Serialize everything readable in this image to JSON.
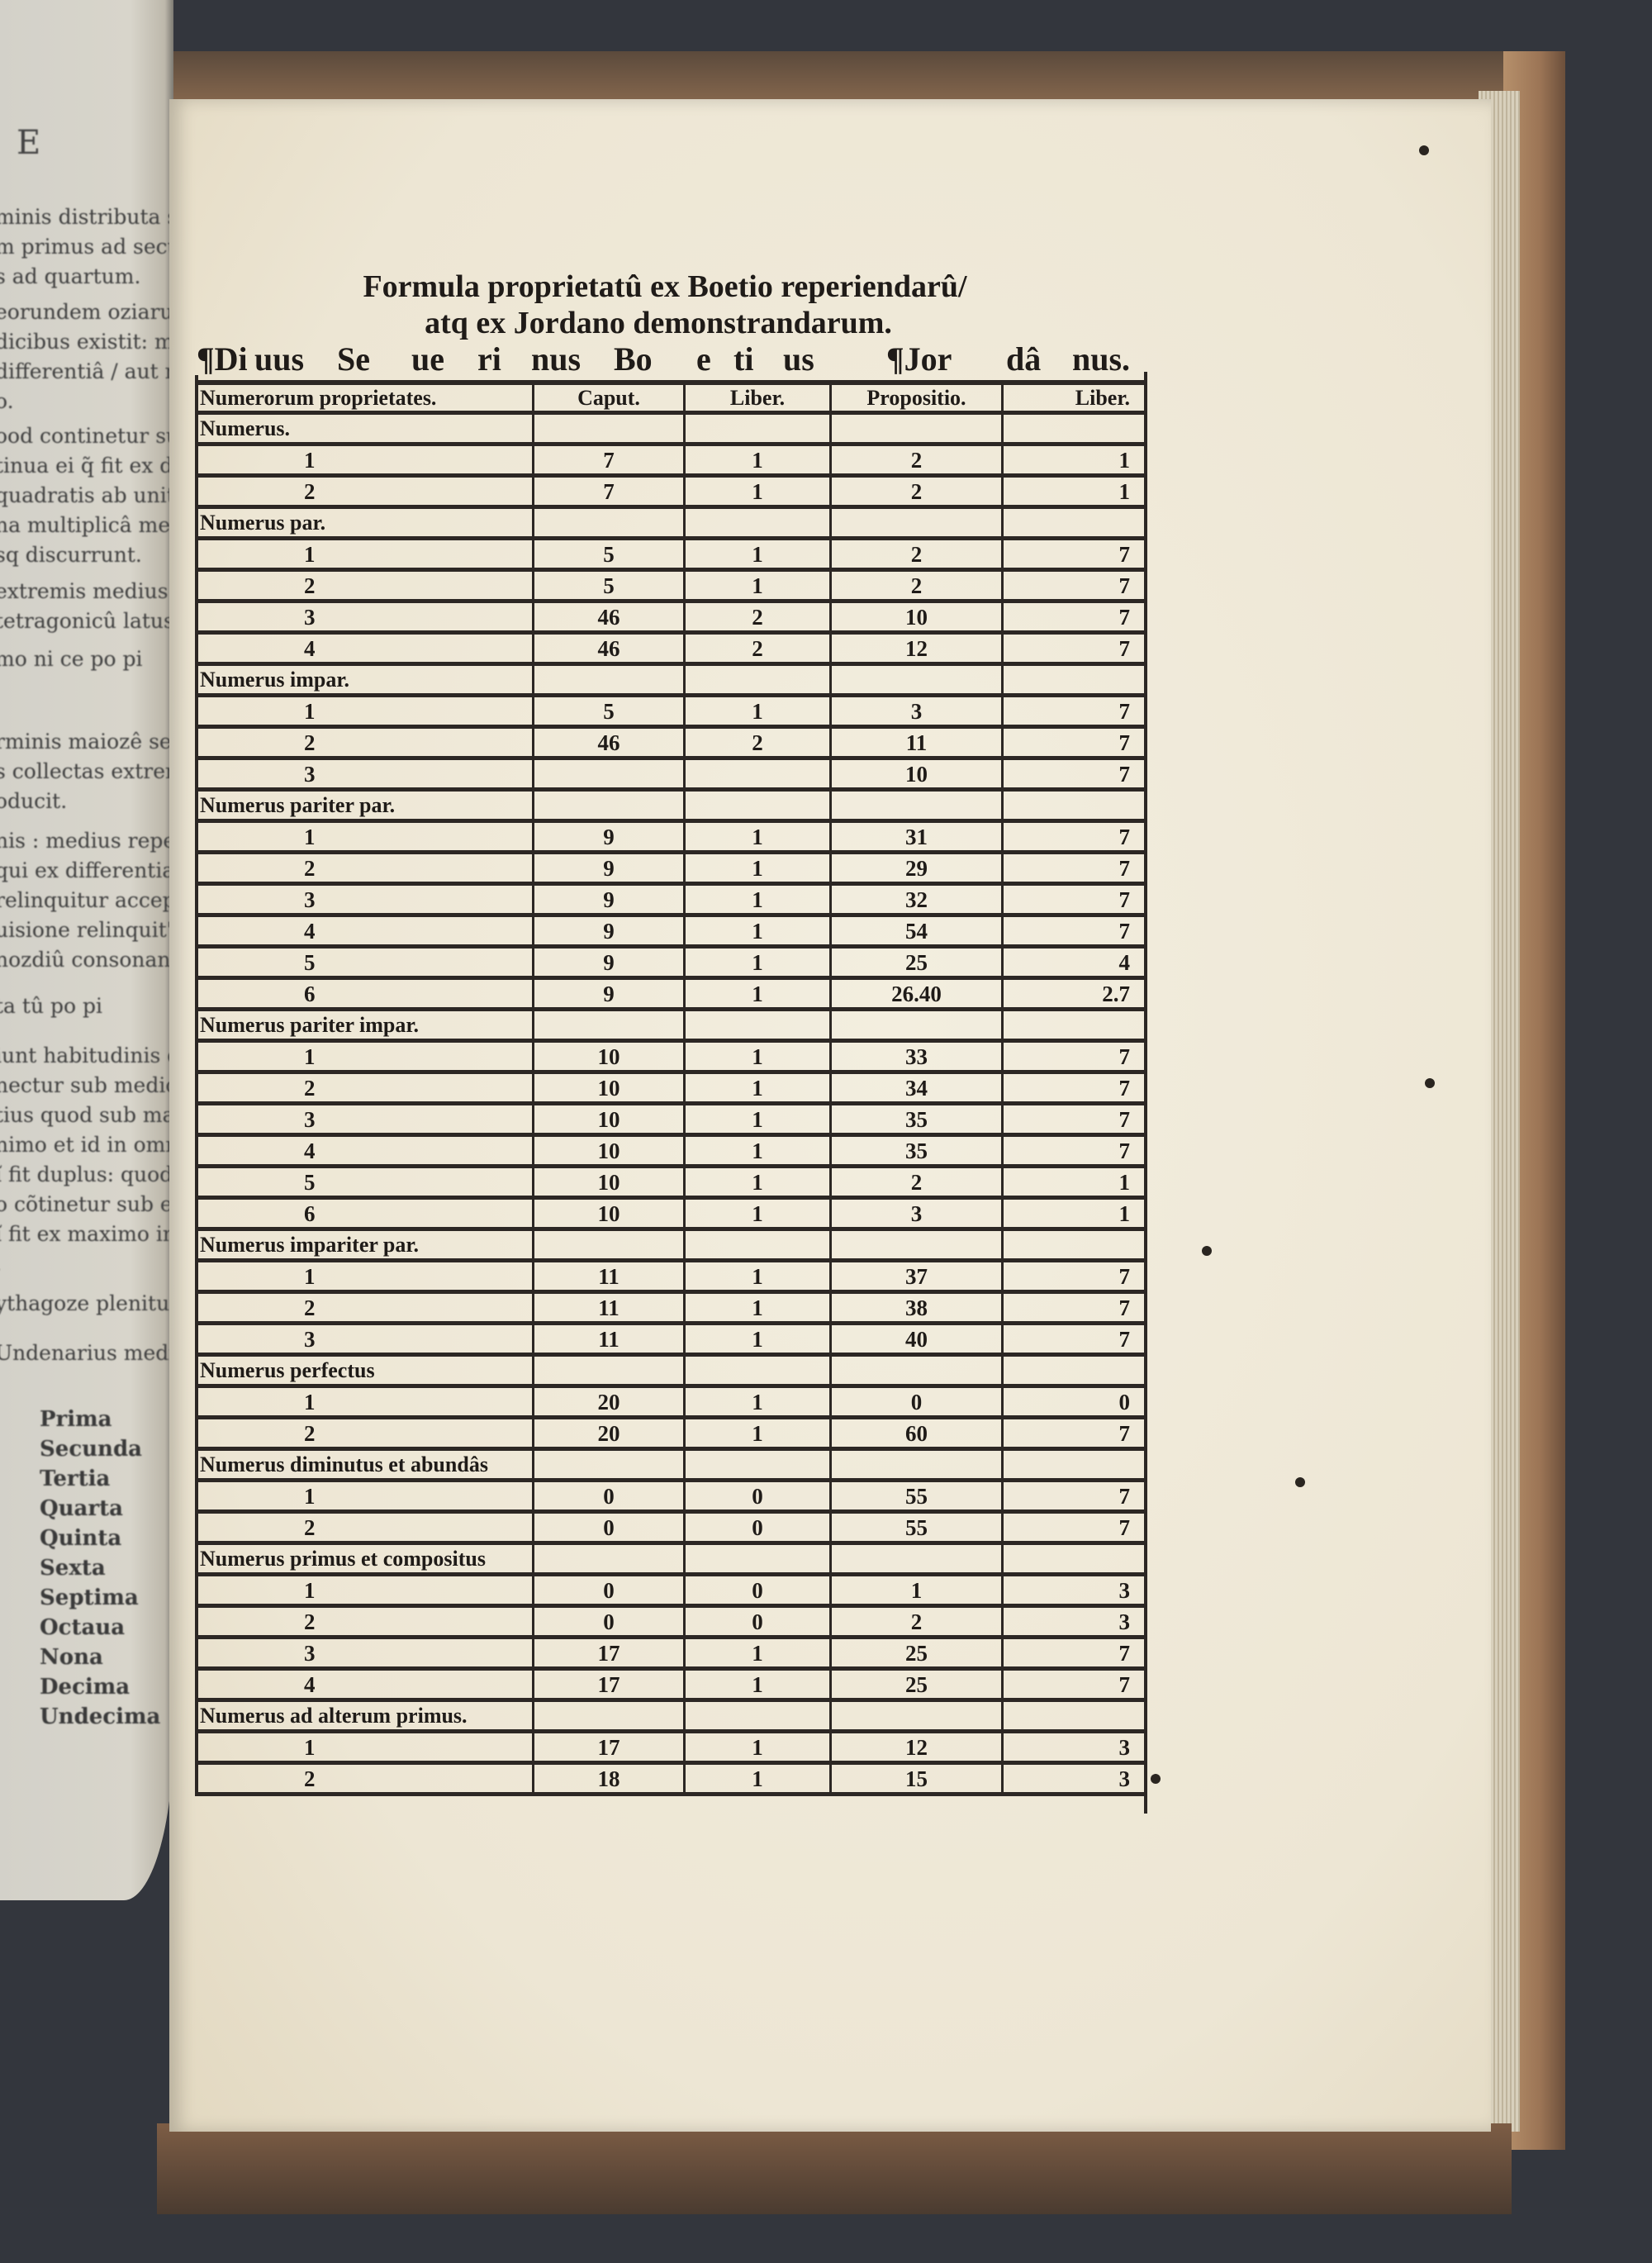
{
  "left_page": {
    "page_mark": "E",
    "paragraphs": [
      [
        "minis distributa semper permu",
        "m primus ad secundu: sic tertiu",
        "s ad quartum."
      ],
      [
        "eorundem oziarum similis ch p",
        "dicibus existit: maior numerus",
        "differentiâ / aut multiplicê num",
        "o."
      ],
      [
        "ood continetur sub extremis",
        "tinua ei q̃ fit ex duab' in se",
        "quadratis ab unitate t alterius",
        "na multiplicâ medietate in m",
        "sq discurrunt."
      ],
      [
        "extremis medius proportiona",
        "tetragonicû latus accipiat"
      ],
      [
        "mo    ni    ce    po    pi"
      ],
      [
        "rminis maiozê seruat propo",
        "s collectas extremitates du",
        "oducit."
      ],
      [
        "nis : medius reperitur ter",
        "qui ex differentia extremi",
        "relinquitur acceptatur ap",
        "uisione relinquit' latitudo",
        "nozdiû consonantiarû cois"
      ],
      [
        "ta    tû    po    pi"
      ],
      [
        "iunt habitudinis duplicati",
        "nectur sub medio t mini",
        "tius quod sub maximo e t",
        "nimo et id in omni medi",
        "ĩ fit duplus: quod cõtine",
        "o cõtinetur sub extremis",
        "ĩ fit ex maximo in medi",
        "."
      ],
      [
        "ythagoze plenitudinê in"
      ],
      [
        "Undenarius medieta"
      ]
    ],
    "list": [
      "Prima",
      "Secunda",
      "Tertia",
      "Quarta",
      "Quinta",
      "Sexta",
      "Septima",
      "Octaua",
      "Nona",
      "Decima",
      "Undecima"
    ]
  },
  "right_page": {
    "title_line1": "Formula proprietatû ex Boetio reperiendarû/",
    "title_line2": "atq ex Jordano demonstrandarum.",
    "authors": [
      "¶Di",
      "uus",
      "Se",
      "ue",
      "ri",
      "nus",
      "Bo",
      "e",
      "ti",
      "us",
      "¶Jor",
      "dâ",
      "nus."
    ],
    "columns": [
      "Numerorum proprietates.",
      "Caput.",
      "Liber.",
      "Propositio.",
      "Liber."
    ],
    "groups": [
      {
        "name": "Numerus.",
        "rows": [
          [
            "1",
            "7",
            "1",
            "2",
            "1"
          ],
          [
            "2",
            "7",
            "1",
            "2",
            "1"
          ]
        ]
      },
      {
        "name": "Numerus par.",
        "rows": [
          [
            "1",
            "5",
            "1",
            "2",
            "7"
          ],
          [
            "2",
            "5",
            "1",
            "2",
            "7"
          ],
          [
            "3",
            "46",
            "2",
            "10",
            "7"
          ],
          [
            "4",
            "46",
            "2",
            "12",
            "7"
          ]
        ]
      },
      {
        "name": "Numerus impar.",
        "rows": [
          [
            "1",
            "5",
            "1",
            "3",
            "7"
          ],
          [
            "2",
            "46",
            "2",
            "11",
            "7"
          ],
          [
            "3",
            "",
            "",
            "10",
            "7"
          ]
        ]
      },
      {
        "name": "Numerus pariter par.",
        "rows": [
          [
            "1",
            "9",
            "1",
            "31",
            "7"
          ],
          [
            "2",
            "9",
            "1",
            "29",
            "7"
          ],
          [
            "3",
            "9",
            "1",
            "32",
            "7"
          ],
          [
            "4",
            "9",
            "1",
            "54",
            "7"
          ],
          [
            "5",
            "9",
            "1",
            "25",
            "4"
          ],
          [
            "6",
            "9",
            "1",
            "26.40",
            "2.7"
          ]
        ]
      },
      {
        "name": "Numerus pariter impar.",
        "rows": [
          [
            "1",
            "10",
            "1",
            "33",
            "7"
          ],
          [
            "2",
            "10",
            "1",
            "34",
            "7"
          ],
          [
            "3",
            "10",
            "1",
            "35",
            "7"
          ],
          [
            "4",
            "10",
            "1",
            "35",
            "7"
          ],
          [
            "5",
            "10",
            "1",
            "2",
            "1"
          ],
          [
            "6",
            "10",
            "1",
            "3",
            "1"
          ]
        ]
      },
      {
        "name": "Numerus impariter par.",
        "rows": [
          [
            "1",
            "11",
            "1",
            "37",
            "7"
          ],
          [
            "2",
            "11",
            "1",
            "38",
            "7"
          ],
          [
            "3",
            "11",
            "1",
            "40",
            "7"
          ]
        ]
      },
      {
        "name": "Numerus perfectus",
        "rows": [
          [
            "1",
            "20",
            "1",
            "0",
            "0"
          ],
          [
            "2",
            "20",
            "1",
            "60",
            "7"
          ]
        ]
      },
      {
        "name": "Numerus diminutus et abundâs",
        "rows": [
          [
            "1",
            "0",
            "0",
            "55",
            "7"
          ],
          [
            "2",
            "0",
            "0",
            "55",
            "7"
          ]
        ]
      },
      {
        "name": "Numerus primus et compositus",
        "rows": [
          [
            "1",
            "0",
            "0",
            "1",
            "3"
          ],
          [
            "2",
            "0",
            "0",
            "2",
            "3"
          ],
          [
            "3",
            "17",
            "1",
            "25",
            "7"
          ],
          [
            "4",
            "17",
            "1",
            "25",
            "7"
          ]
        ]
      },
      {
        "name": "Numerus ad alterum primus.",
        "rows": [
          [
            "1",
            "17",
            "1",
            "12",
            "3"
          ],
          [
            "2",
            "18",
            "1",
            "15",
            "3"
          ]
        ]
      }
    ]
  }
}
